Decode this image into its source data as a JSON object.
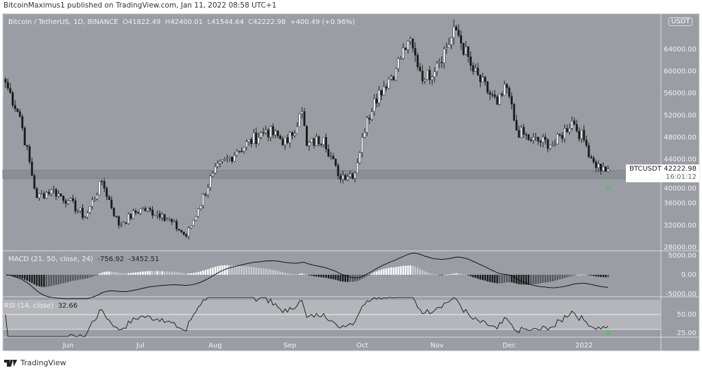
{
  "header": {
    "published": "BitcoinMaximus1 published on TradingView.com, Jan 11, 2022 08:58 UTC+1"
  },
  "legend": {
    "symbol": "Bitcoin / TetherUS, 1D, BINANCE",
    "open_label": "O",
    "open": "41822.49",
    "high_label": "H",
    "high": "42400.01",
    "low_label": "L",
    "low": "41544.64",
    "close_label": "C",
    "close": "42222.98",
    "change": "+400.49 (+0.96%)"
  },
  "price_tag": {
    "symbol": "BTCUSDT",
    "price": "42222.98",
    "countdown": "16:01:12"
  },
  "currency": "USDT",
  "footer": {
    "brand": "TradingView"
  },
  "colors": {
    "background": "#9b9da5",
    "up": "#ffffff",
    "down": "#1a1a1a",
    "support_band": "#8c8e96",
    "signal": "#3ad13a"
  },
  "chart_data": [
    {
      "type": "candlestick",
      "title": "Bitcoin / TetherUS, 1D, BINANCE",
      "x_start": "2021-05-06",
      "x_end": "2022-01-11",
      "ylim": [
        27000,
        68500
      ],
      "y_ticks": [
        "64000.00",
        "60000.00",
        "56000.00",
        "52000.00",
        "48000.00",
        "44000.00",
        "40000.00",
        "36000.00",
        "32000.00",
        "28000.00"
      ],
      "x_ticks": [
        {
          "date": "2021-06-01",
          "label": "Jun"
        },
        {
          "date": "2021-07-01",
          "label": "Jul"
        },
        {
          "date": "2021-08-01",
          "label": "Aug"
        },
        {
          "date": "2021-09-01",
          "label": "Sep"
        },
        {
          "date": "2021-10-01",
          "label": "Oct"
        },
        {
          "date": "2021-11-01",
          "label": "Nov"
        },
        {
          "date": "2021-12-01",
          "label": "Dec"
        },
        {
          "date": "2022-01-01",
          "label": "2022"
        }
      ],
      "close_points": [
        [
          "2021-05-06",
          58000
        ],
        [
          "2021-05-12",
          51800
        ],
        [
          "2021-05-19",
          37000
        ],
        [
          "2021-05-25",
          38500
        ],
        [
          "2021-06-01",
          36500
        ],
        [
          "2021-06-08",
          33500
        ],
        [
          "2021-06-15",
          40000
        ],
        [
          "2021-06-22",
          32000
        ],
        [
          "2021-07-01",
          35000
        ],
        [
          "2021-07-10",
          34000
        ],
        [
          "2021-07-20",
          30000
        ],
        [
          "2021-07-25",
          35000
        ],
        [
          "2021-07-31",
          41500
        ],
        [
          "2021-08-10",
          45500
        ],
        [
          "2021-08-22",
          49300
        ],
        [
          "2021-08-31",
          47000
        ],
        [
          "2021-09-06",
          52700
        ],
        [
          "2021-09-08",
          46500
        ],
        [
          "2021-09-15",
          48000
        ],
        [
          "2021-09-21",
          41000
        ],
        [
          "2021-09-28",
          41500
        ],
        [
          "2021-10-01",
          48000
        ],
        [
          "2021-10-06",
          55000
        ],
        [
          "2021-10-15",
          60500
        ],
        [
          "2021-10-20",
          65500
        ],
        [
          "2021-10-27",
          58500
        ],
        [
          "2021-11-01",
          61500
        ],
        [
          "2021-11-09",
          67500
        ],
        [
          "2021-11-16",
          60000
        ],
        [
          "2021-11-26",
          54000
        ],
        [
          "2021-11-30",
          57000
        ],
        [
          "2021-12-04",
          49300
        ],
        [
          "2021-12-10",
          47500
        ],
        [
          "2021-12-20",
          46800
        ],
        [
          "2021-12-27",
          51000
        ],
        [
          "2022-01-01",
          47500
        ],
        [
          "2022-01-05",
          43500
        ],
        [
          "2022-01-10",
          41800
        ],
        [
          "2022-01-11",
          42222.98
        ]
      ],
      "support_zone": [
        40500,
        42000
      ],
      "signal_marker": {
        "date": "2022-01-11",
        "color": "#3ad13a",
        "position": "below"
      }
    },
    {
      "type": "line",
      "title": "MACD (21, 50, close, 24)",
      "macd_value": "-756.92",
      "signal_value": "-3452.51",
      "y_ticks": [
        "5000.00",
        "0.00",
        "-5000.00"
      ],
      "ylim": [
        -6200,
        6500
      ]
    },
    {
      "type": "line",
      "title": "RSI (14, close)",
      "value": "32.66",
      "y_ticks": [
        "50.00",
        "25.00"
      ],
      "bands": [
        30,
        70
      ],
      "ylim": [
        20,
        78
      ]
    }
  ]
}
